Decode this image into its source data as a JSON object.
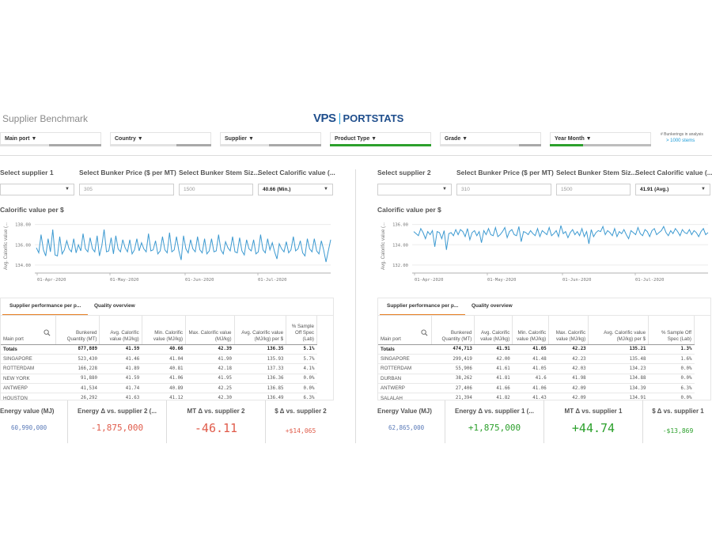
{
  "app": {
    "title": "Supplier Benchmark",
    "logo_left": "VPS",
    "logo_right": "PORTSTATS"
  },
  "filters": [
    {
      "label": "Main port ▼"
    },
    {
      "label": "Country ▼"
    },
    {
      "label": "Supplier ▼"
    },
    {
      "label": "Product Type ▼"
    },
    {
      "label": "Grade ▼"
    },
    {
      "label": "Year Month ▼"
    }
  ],
  "stems": {
    "label": "# Bunkerings in analysis",
    "value": "> 1000 stems"
  },
  "colors": {
    "accent": "#1b9bd7",
    "line": "#3d9ad1",
    "positive": "#2ca02c",
    "negative": "#e05c4b",
    "green_bar": "#2ca02c",
    "tab": "#e67e22"
  },
  "left": {
    "selects": {
      "supplier_label": "Select supplier 1",
      "price_label": "Select Bunker Price ($ per MT)",
      "price_value": "305",
      "size_label": "Select Bunker Stem Siz...",
      "size_value": "1500",
      "cal_label": "Select Calorific value (...",
      "cal_value": "40.66 (Min.)"
    },
    "chart_title": "Calorific value per $",
    "chart_data": {
      "type": "line",
      "ylabel": "Avg. Calorific value (...",
      "yticks": [
        "138.00",
        "136.00",
        "134.00"
      ],
      "xticks": [
        "01-Apr-2020",
        "01-May-2020",
        "01-Jun-2020",
        "01-Jul-2020"
      ],
      "ylim": [
        133.6,
        138.6
      ],
      "values": [
        135.7,
        135.2,
        137.0,
        135.5,
        134.9,
        136.6,
        135.3,
        137.5,
        135.0,
        134.9,
        136.8,
        135.1,
        135.5,
        136.4,
        135.6,
        135.3,
        136.6,
        135.2,
        136.0,
        135.4,
        137.1,
        135.6,
        135.3,
        136.7,
        135.6,
        135.3,
        136.9,
        134.9,
        135.9,
        137.5,
        135.3,
        135.4,
        136.7,
        135.1,
        136.9,
        135.6,
        135.3,
        136.5,
        135.7,
        135.3,
        136.5,
        135.1,
        135.5,
        136.6,
        135.4,
        136.2,
        135.6,
        135.3,
        137.1,
        135.4,
        135.5,
        136.4,
        135.1,
        135.4,
        136.8,
        135.5,
        135.2,
        137.2,
        135.3,
        135.5,
        136.8,
        135.4,
        134.5,
        136.9,
        135.6,
        135.2,
        136.5,
        135.6,
        135.3,
        136.8,
        135.5,
        135.2,
        136.6,
        135.1,
        135.4,
        136.6,
        135.3,
        135.4,
        137.0,
        135.5,
        135.1,
        136.3,
        135.7,
        135.4,
        136.8,
        135.3,
        135.2,
        136.7,
        135.4,
        135.0,
        136.5,
        135.6,
        135.4,
        136.5,
        135.1,
        135.3,
        137.0,
        135.5,
        135.2,
        136.6,
        135.5,
        136.2,
        135.3,
        134.6,
        136.1,
        135.6,
        135.3,
        136.3,
        135.2,
        135.5,
        136.8,
        135.4,
        135.6,
        136.4,
        135.2,
        134.9,
        136.6,
        135.6,
        135.3,
        136.6,
        135.4,
        135.1,
        136.4,
        135.5,
        134.3,
        135.4,
        136.5
      ]
    },
    "tabs": [
      "Supplier performance per p...",
      "Quality overview"
    ],
    "table": {
      "headers": [
        "Main port",
        "Bunkered Quantity (MT)",
        "Avg. Calorific value (MJ/kg)",
        "Min. Calorific value (MJ/kg)",
        "Max. Calorific value (MJ/kg)",
        "Avg. Calorific value (MJ/kg) per $",
        "% Sample Off Spec (Lab)"
      ],
      "totals": [
        "Totals",
        "877,889",
        "41.59",
        "40.66",
        "42.39",
        "136.35",
        "5.1%"
      ],
      "rows": [
        [
          "SINGAPORE",
          "523,430",
          "41.46",
          "41.04",
          "41.90",
          "135.93",
          "5.7%"
        ],
        [
          "ROTTERDAM",
          "166,228",
          "41.89",
          "40.81",
          "42.18",
          "137.33",
          "4.1%"
        ],
        [
          "NEW YORK",
          "91,880",
          "41.59",
          "41.06",
          "41.95",
          "136.36",
          "0.0%"
        ],
        [
          "ANTWERP",
          "41,534",
          "41.74",
          "40.89",
          "42.25",
          "136.85",
          "0.0%"
        ],
        [
          "HOUSTON",
          "26,292",
          "41.63",
          "41.12",
          "42.30",
          "136.49",
          "6.3%"
        ]
      ]
    },
    "kpis": [
      {
        "label": "Energy value (MJ)",
        "value": "60,990,000"
      },
      {
        "label": "Energy Δ vs. supplier 2 (...",
        "value": "-1,875,000"
      },
      {
        "label": "MT Δ vs. supplier 2",
        "value": "-46.11"
      },
      {
        "label": "$ Δ vs. supplier 2",
        "value": "+$14,065"
      }
    ]
  },
  "right": {
    "selects": {
      "supplier_label": "Select supplier 2",
      "price_label": "Select Bunker Price ($ per MT)",
      "price_value": "310",
      "size_label": "Select Bunker Stem Siz...",
      "size_value": "1500",
      "cal_label": "Select Calorific value (...",
      "cal_value": "41.91 (Avg.)"
    },
    "chart_title": "Calorific value per $",
    "chart_data": {
      "type": "line",
      "ylabel": "Avg. Calorific value (...",
      "yticks": [
        "136.00",
        "134.00",
        "132.00"
      ],
      "xticks": [
        "01-Apr-2020",
        "01-May-2020",
        "01-Jun-2020",
        "01-Jul-2020"
      ],
      "ylim": [
        131.6,
        136.6
      ],
      "values": [
        135.3,
        135.1,
        134.9,
        135.6,
        135.2,
        134.6,
        135.3,
        135.0,
        135.4,
        133.8,
        135.3,
        135.2,
        134.6,
        135.4,
        133.5,
        135.1,
        135.2,
        134.9,
        135.5,
        135.0,
        135.5,
        135.3,
        134.8,
        135.6,
        134.5,
        135.2,
        135.4,
        134.9,
        135.3,
        134.2,
        135.4,
        135.0,
        135.6,
        135.0,
        134.9,
        135.7,
        134.8,
        135.0,
        135.3,
        135.7,
        134.7,
        135.3,
        135.5,
        135.0,
        134.9,
        135.8,
        134.3,
        135.3,
        135.2,
        135.0,
        135.4,
        135.1,
        134.9,
        135.6,
        134.8,
        135.4,
        135.2,
        135.0,
        135.7,
        134.9,
        135.1,
        135.4,
        134.8,
        135.9,
        135.1,
        135.3,
        134.7,
        135.2,
        135.5,
        135.0,
        135.3,
        134.9,
        135.6,
        134.8,
        135.3,
        134.1,
        135.5,
        134.8,
        135.2,
        135.4,
        135.3,
        135.8,
        135.0,
        135.4,
        135.2,
        134.9,
        135.6,
        134.8,
        135.3,
        135.1,
        135.5,
        135.0,
        134.6,
        135.4,
        135.2,
        135.0,
        135.7,
        135.1,
        134.9,
        135.5,
        135.3,
        134.8,
        135.4,
        135.6,
        135.0,
        135.2,
        135.4,
        135.8,
        135.2,
        134.9,
        135.4,
        135.1,
        135.6,
        135.3,
        134.9,
        135.5,
        135.2,
        135.1,
        135.5,
        135.0,
        135.4,
        135.2,
        134.8,
        135.3,
        135.6,
        135.0,
        135.2
      ]
    },
    "tabs": [
      "Supplier performance per p...",
      "Quality overview"
    ],
    "table": {
      "headers": [
        "Main port",
        "Bunkered Quantity (MT)",
        "Avg. Calorific value (MJ/kg)",
        "Min. Calorific value (MJ/kg)",
        "Max. Calorific value (MJ/kg)",
        "Avg. Calorific value (MJ/kg) per $",
        "% Sample Off Spec (Lab)"
      ],
      "totals": [
        "Totals",
        "474,713",
        "41.91",
        "41.05",
        "42.23",
        "135.21",
        "1.3%"
      ],
      "rows": [
        [
          "SINGAPORE",
          "299,419",
          "42.00",
          "41.48",
          "42.23",
          "135.48",
          "1.6%"
        ],
        [
          "ROTTERDAM",
          "55,906",
          "41.61",
          "41.05",
          "42.03",
          "134.23",
          "0.0%"
        ],
        [
          "DURBAN",
          "38,262",
          "41.81",
          "41.6",
          "41.98",
          "134.88",
          "0.0%"
        ],
        [
          "ANTWERP",
          "27,406",
          "41.66",
          "41.06",
          "42.09",
          "134.39",
          "6.3%"
        ],
        [
          "SALALAH",
          "21,394",
          "41.82",
          "41.43",
          "42.09",
          "134.91",
          "0.0%"
        ]
      ]
    },
    "kpis": [
      {
        "label": "Energy Value (MJ)",
        "value": "62,865,000"
      },
      {
        "label": "Energy Δ vs. supplier 1 (...",
        "value": "+1,875,000"
      },
      {
        "label": "MT Δ vs. supplier 1",
        "value": "+44.74"
      },
      {
        "label": "$ Δ vs. supplier 1",
        "value": "-$13,869"
      }
    ]
  }
}
